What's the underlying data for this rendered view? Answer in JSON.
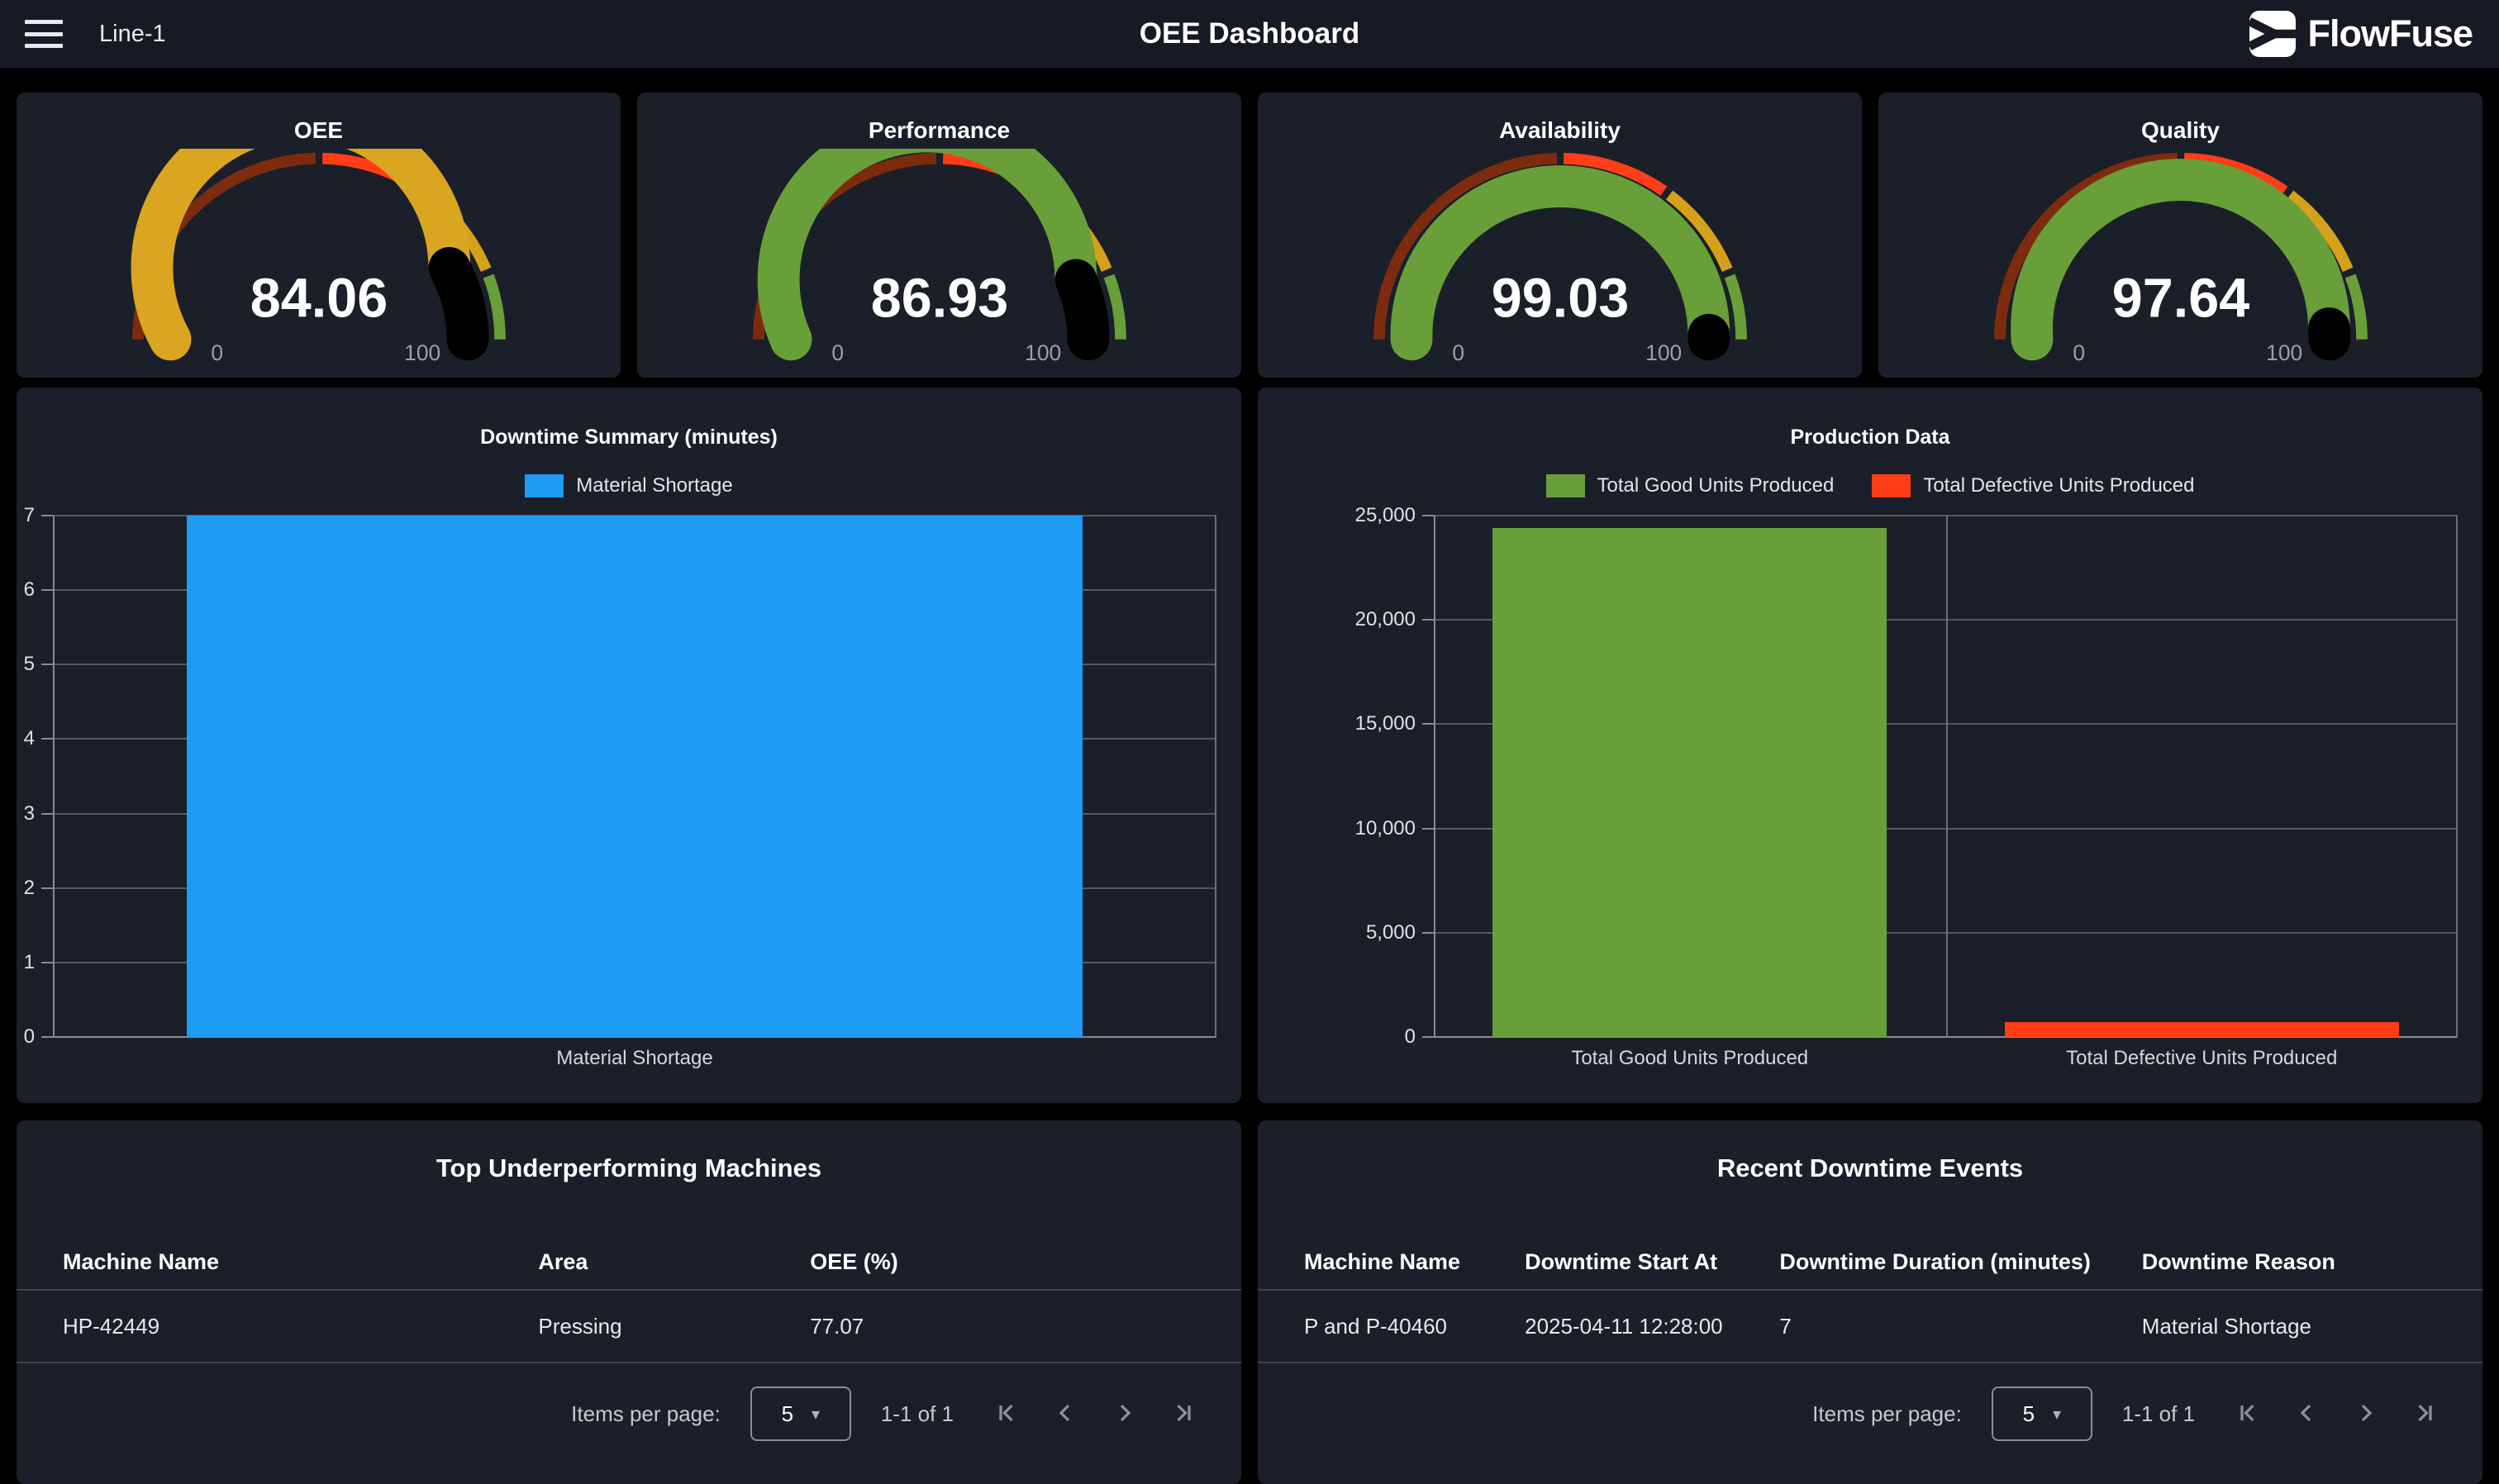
{
  "topbar": {
    "menu_label": "Line-1",
    "title": "OEE Dashboard",
    "brand": "FlowFuse"
  },
  "theme": {
    "page_bg": "#000000",
    "topbar_bg": "#171A24",
    "panel_bg": "#1B1F2A",
    "gridline": "#545962",
    "axis": "#868b94",
    "muted_text": "#9aa0a6",
    "blue": "#1E9BF4",
    "green": "#689F38",
    "red": "#FF3D14",
    "gold": "#DAA520"
  },
  "gauge_style": {
    "ring_stops": [
      {
        "from": 0.0,
        "to": 0.5,
        "color": "#7D2B0E"
      },
      {
        "from": 0.5,
        "to": 0.7,
        "color": "#FF3D17"
      },
      {
        "from": 0.7,
        "to": 0.88,
        "color": "#D5A118"
      },
      {
        "from": 0.88,
        "to": 1.0,
        "color": "#689F38"
      }
    ],
    "track_color": "#000000",
    "label_color": "#9aa0a6"
  },
  "chart_data": [
    {
      "type": "gauge",
      "title": "OEE",
      "value": 84.06,
      "value_label": "84.06",
      "min": 0,
      "max": 100,
      "min_label": "0",
      "max_label": "100",
      "arc_color": "#DAA520"
    },
    {
      "type": "gauge",
      "title": "Performance",
      "value": 86.93,
      "value_label": "86.93",
      "min": 0,
      "max": 100,
      "min_label": "0",
      "max_label": "100",
      "arc_color": "#689F38"
    },
    {
      "type": "gauge",
      "title": "Availability",
      "value": 99.03,
      "value_label": "99.03",
      "min": 0,
      "max": 100,
      "min_label": "0",
      "max_label": "100",
      "arc_color": "#689F38"
    },
    {
      "type": "gauge",
      "title": "Quality",
      "value": 97.64,
      "value_label": "97.64",
      "min": 0,
      "max": 100,
      "min_label": "0",
      "max_label": "100",
      "arc_color": "#689F38"
    },
    {
      "type": "bar",
      "title": "Downtime Summary (minutes)",
      "categories": [
        "Material Shortage"
      ],
      "values": [
        7
      ],
      "bar_colors": [
        "#1E9BF4"
      ],
      "legend": [
        {
          "label": "Material Shortage",
          "color": "#1E9BF4"
        }
      ],
      "legend_position": "top",
      "grid": true,
      "ylim": [
        0,
        7
      ],
      "yticks": [
        {
          "value": 0,
          "label": "0"
        },
        {
          "value": 1,
          "label": "1"
        },
        {
          "value": 2,
          "label": "2"
        },
        {
          "value": 3,
          "label": "3"
        },
        {
          "value": 4,
          "label": "4"
        },
        {
          "value": 5,
          "label": "5"
        },
        {
          "value": 6,
          "label": "6"
        },
        {
          "value": 7,
          "label": "7"
        }
      ]
    },
    {
      "type": "bar",
      "title": "Production Data",
      "categories": [
        "Total Good Units Produced",
        "Total Defective Units Produced"
      ],
      "values": [
        24400,
        700
      ],
      "bar_colors": [
        "#689F38",
        "#FF3D14"
      ],
      "legend": [
        {
          "label": "Total Good Units Produced",
          "color": "#689F38"
        },
        {
          "label": "Total Defective Units Produced",
          "color": "#FF3D14"
        }
      ],
      "legend_position": "top",
      "grid": true,
      "ylim": [
        0,
        25000
      ],
      "yticks": [
        {
          "value": 0,
          "label": "0"
        },
        {
          "value": 5000,
          "label": "5,000"
        },
        {
          "value": 10000,
          "label": "10,000"
        },
        {
          "value": 15000,
          "label": "15,000"
        },
        {
          "value": 20000,
          "label": "20,000"
        },
        {
          "value": 25000,
          "label": "25,000"
        }
      ]
    }
  ],
  "tables": [
    {
      "title": "Top Underperforming Machines",
      "columns": [
        "Machine Name",
        "Area",
        "OEE (%)"
      ],
      "rows": [
        [
          "HP-42449",
          "Pressing",
          "77.07"
        ]
      ],
      "pagination": {
        "items_per_page_label": "Items per page:",
        "page_size": "5",
        "range_label": "1-1 of 1"
      }
    },
    {
      "title": "Recent Downtime Events",
      "columns": [
        "Machine Name",
        "Downtime Start At",
        "Downtime Duration (minutes)",
        "Downtime Reason"
      ],
      "rows": [
        [
          "P and P-40460",
          "2025-04-11 12:28:00",
          "7",
          "Material Shortage"
        ]
      ],
      "pagination": {
        "items_per_page_label": "Items per page:",
        "page_size": "5",
        "range_label": "1-1 of 1"
      }
    }
  ]
}
